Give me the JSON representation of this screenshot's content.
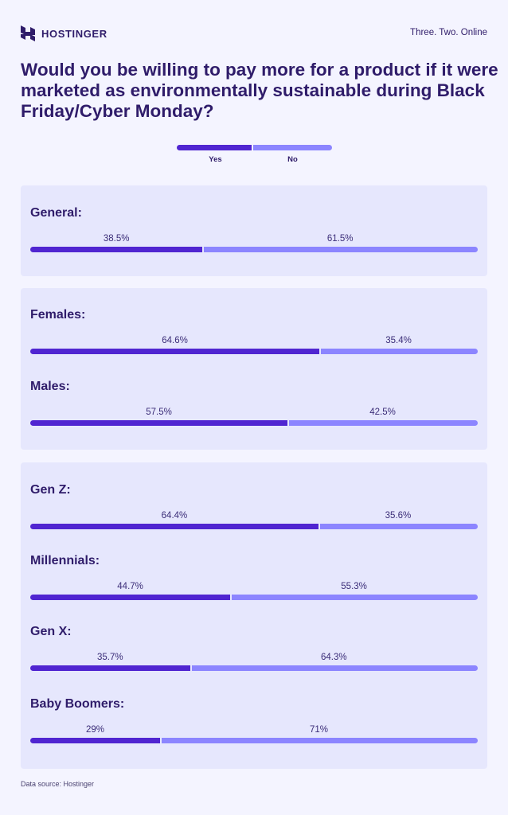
{
  "header": {
    "brand": "HOSTINGER",
    "tagline": "Three. Two. Online"
  },
  "colors": {
    "yes": "#5025d1",
    "no": "#8c85ff",
    "panel": "#e6e7fd",
    "text": "#2f1c6a"
  },
  "chart_data": {
    "type": "bar",
    "stacked": true,
    "orientation": "horizontal",
    "title": "Would you be willing to pay more for a product if it were marketed as environmentally sustainable during Black Friday/Cyber Monday?",
    "legend": [
      "Yes",
      "No"
    ],
    "legend_placement": "top-center",
    "groups": [
      {
        "rows": [
          {
            "label": "General:",
            "yes": 38.5,
            "no": 61.5,
            "yes_text": "38.5%",
            "no_text": "61.5%"
          }
        ]
      },
      {
        "rows": [
          {
            "label": "Females:",
            "yes": 64.6,
            "no": 35.4,
            "yes_text": "64.6%",
            "no_text": "35.4%"
          },
          {
            "label": "Males:",
            "yes": 57.5,
            "no": 42.5,
            "yes_text": "57.5%",
            "no_text": "42.5%"
          }
        ]
      },
      {
        "rows": [
          {
            "label": "Gen Z:",
            "yes": 64.4,
            "no": 35.6,
            "yes_text": "64.4%",
            "no_text": "35.6%"
          },
          {
            "label": "Millennials:",
            "yes": 44.7,
            "no": 55.3,
            "yes_text": "44.7%",
            "no_text": "55.3%"
          },
          {
            "label": "Gen X:",
            "yes": 35.7,
            "no": 64.3,
            "yes_text": "35.7%",
            "no_text": "64.3%"
          },
          {
            "label": "Baby Boomers:",
            "yes": 29,
            "no": 71,
            "yes_text": "29%",
            "no_text": "71%"
          }
        ]
      }
    ]
  },
  "footer": {
    "source": "Data source: Hostinger"
  }
}
